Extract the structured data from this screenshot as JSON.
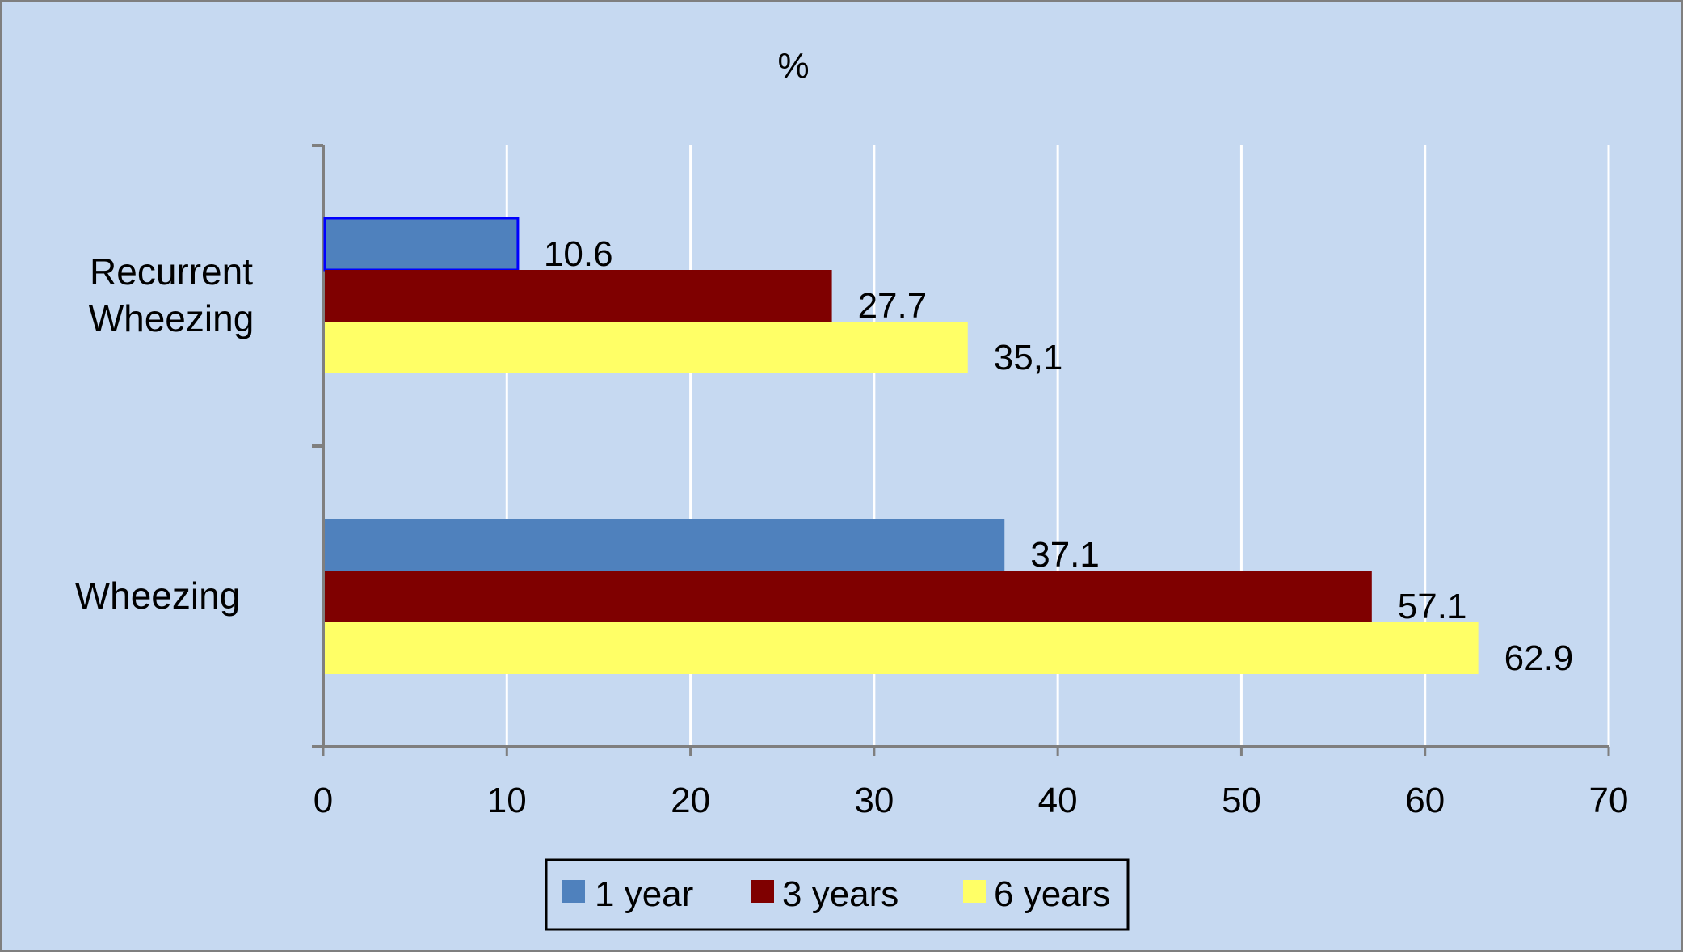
{
  "chart_data": {
    "type": "bar",
    "orientation": "horizontal",
    "title": "%",
    "categories": [
      "Recurrent Wheezing",
      "Wheezing"
    ],
    "category_lines": [
      [
        "Recurrent",
        "Wheezing"
      ],
      [
        "Wheezing"
      ]
    ],
    "series": [
      {
        "name": "1 year",
        "values": [
          10.6,
          37.1
        ],
        "labels": [
          "10.6",
          "37.1"
        ],
        "color": "#4f81bd"
      },
      {
        "name": "3 years",
        "values": [
          27.7,
          57.1
        ],
        "labels": [
          "27.7",
          "57.1"
        ],
        "color": "#7f0000"
      },
      {
        "name": "6 years",
        "values": [
          35.1,
          62.9
        ],
        "labels": [
          "35,1",
          "62.9"
        ],
        "color": "#ffff66"
      }
    ],
    "xlim": [
      0,
      70
    ],
    "xticks": [
      0,
      10,
      20,
      30,
      40,
      50,
      60,
      70
    ],
    "grid": "vertical",
    "legend_position": "bottom",
    "colors": {
      "background": "#c6d9f1",
      "gridline": "#ffffff",
      "axis": "#7f7f7f",
      "highlight_border": "#0000ff"
    }
  }
}
